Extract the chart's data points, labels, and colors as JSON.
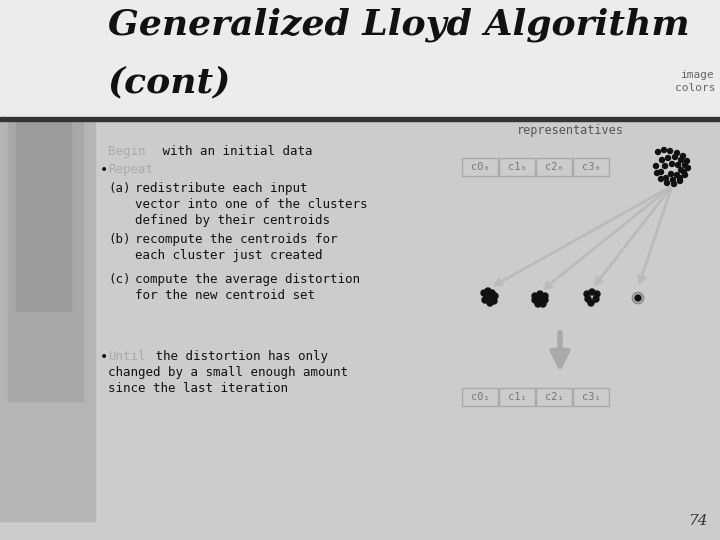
{
  "title_line1": "Generalized Lloyd Algorithm",
  "title_line2": "(cont)",
  "page_number": "74",
  "label_representatives": "representatives",
  "label_image_colors": "image\ncolors",
  "box_top_labels": [
    "c0₀",
    "c1₀",
    "c2₀",
    "c3₀"
  ],
  "box_bot_labels": [
    "c0₁",
    "c1₁",
    "c2₁",
    "c3₁"
  ],
  "bg_top": "#e8e8e8",
  "bg_content": "#c8c8c8",
  "bg_sidebar1": "#b8b8b8",
  "bg_sidebar2": "#a8a8a8",
  "bg_sidebar3": "#989898",
  "divider_color": "#444444",
  "title_color": "#111111",
  "text_dark": "#111111",
  "text_faded": "#aaaaaa",
  "text_mid": "#888888",
  "arrow_color": "#bbbbbb",
  "box_edge": "#aaaaaa",
  "box_face": "#cccccc"
}
